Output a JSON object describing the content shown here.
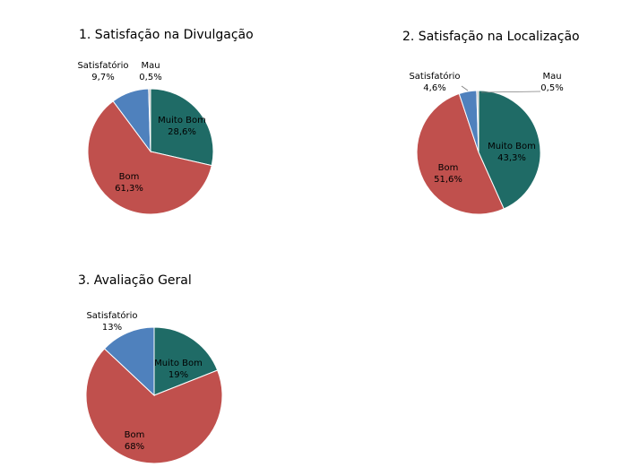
{
  "chart_data": [
    {
      "type": "pie",
      "title": "1. Satisfação na Divulgação",
      "categories": [
        "Muito Bom",
        "Bom",
        "Satisfatório",
        "Mau"
      ],
      "values": [
        28.6,
        61.3,
        9.7,
        0.5
      ],
      "value_labels": [
        "28,6%",
        "61,3%",
        "9,7%",
        "0,5%"
      ],
      "colors": [
        "#1f6b66",
        "#c0504d",
        "#4f81bd",
        "#c0c0c0"
      ]
    },
    {
      "type": "pie",
      "title": "2. Satisfação na Localização",
      "categories": [
        "Muito Bom",
        "Bom",
        "Satisfatório",
        "Mau"
      ],
      "values": [
        43.3,
        51.6,
        4.6,
        0.5
      ],
      "value_labels": [
        "43,3%",
        "51,6%",
        "4,6%",
        "0,5%"
      ],
      "colors": [
        "#1f6b66",
        "#c0504d",
        "#4f81bd",
        "#c0c0c0"
      ]
    },
    {
      "type": "pie",
      "title": "3. Avaliação Geral",
      "categories": [
        "Muito Bom",
        "Bom",
        "Satisfatório"
      ],
      "values": [
        19,
        68,
        13
      ],
      "value_labels": [
        "19%",
        "68%",
        "13%"
      ],
      "colors": [
        "#1f6b66",
        "#c0504d",
        "#4f81bd"
      ]
    }
  ]
}
